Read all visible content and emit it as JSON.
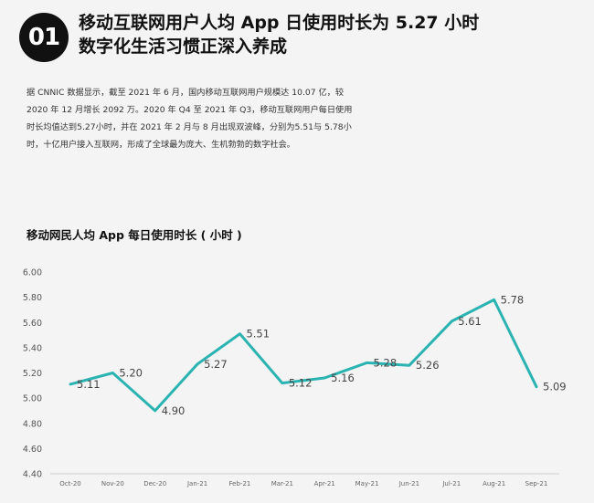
{
  "header": {
    "badge": "01",
    "title_line1": "移动互联网用户人均 App 日使用时长为 5.27 小时",
    "title_line2": "数字化生活习惯正深入养成"
  },
  "intro": {
    "paragraph": "据 CNNIC 数据显示，截至 2021 年 6 月，国内移动互联网用户规模达 10.07 亿，较 2020 年 12 月增长 2092 万。2020 年 Q4 至 2021 年 Q3，移动互联网用户每日使用时长均值达到5.27小时，并在 2021 年 2 月与 8 月出现双波峰，分别为5.51与 5.78小时，十亿用户接入互联网，形成了全球最为庞大、生机勃勃的数字社会。"
  },
  "chart_data": {
    "type": "line",
    "title": "移动网民人均 App 每日使用时长 ( 小时 )",
    "xlabel": "",
    "ylabel": "",
    "categories": [
      "Oct-20",
      "Nov-20",
      "Dec-20",
      "Jan-21",
      "Feb-21",
      "Mar-21",
      "Apr-21",
      "May-21",
      "Jun-21",
      "Jul-21",
      "Aug-21",
      "Sep-21"
    ],
    "series": [
      {
        "values": [
          5.11,
          5.2,
          4.9,
          5.27,
          5.51,
          5.12,
          5.16,
          5.28,
          5.26,
          5.61,
          5.78,
          5.09
        ],
        "labels": [
          "5.11",
          "5.20",
          "4.90",
          "5.27",
          "5.51",
          "5.12",
          "5.16",
          "5.28",
          "5.26",
          "5.61",
          "5.78",
          "5.09"
        ],
        "color": "#2ab3b1"
      }
    ],
    "ylim": [
      4.4,
      6.0
    ],
    "yticks": [
      "4.40",
      "4.60",
      "4.80",
      "5.00",
      "5.20",
      "5.40",
      "5.60",
      "5.80",
      "6.00"
    ],
    "grid": false,
    "legend": "none"
  }
}
